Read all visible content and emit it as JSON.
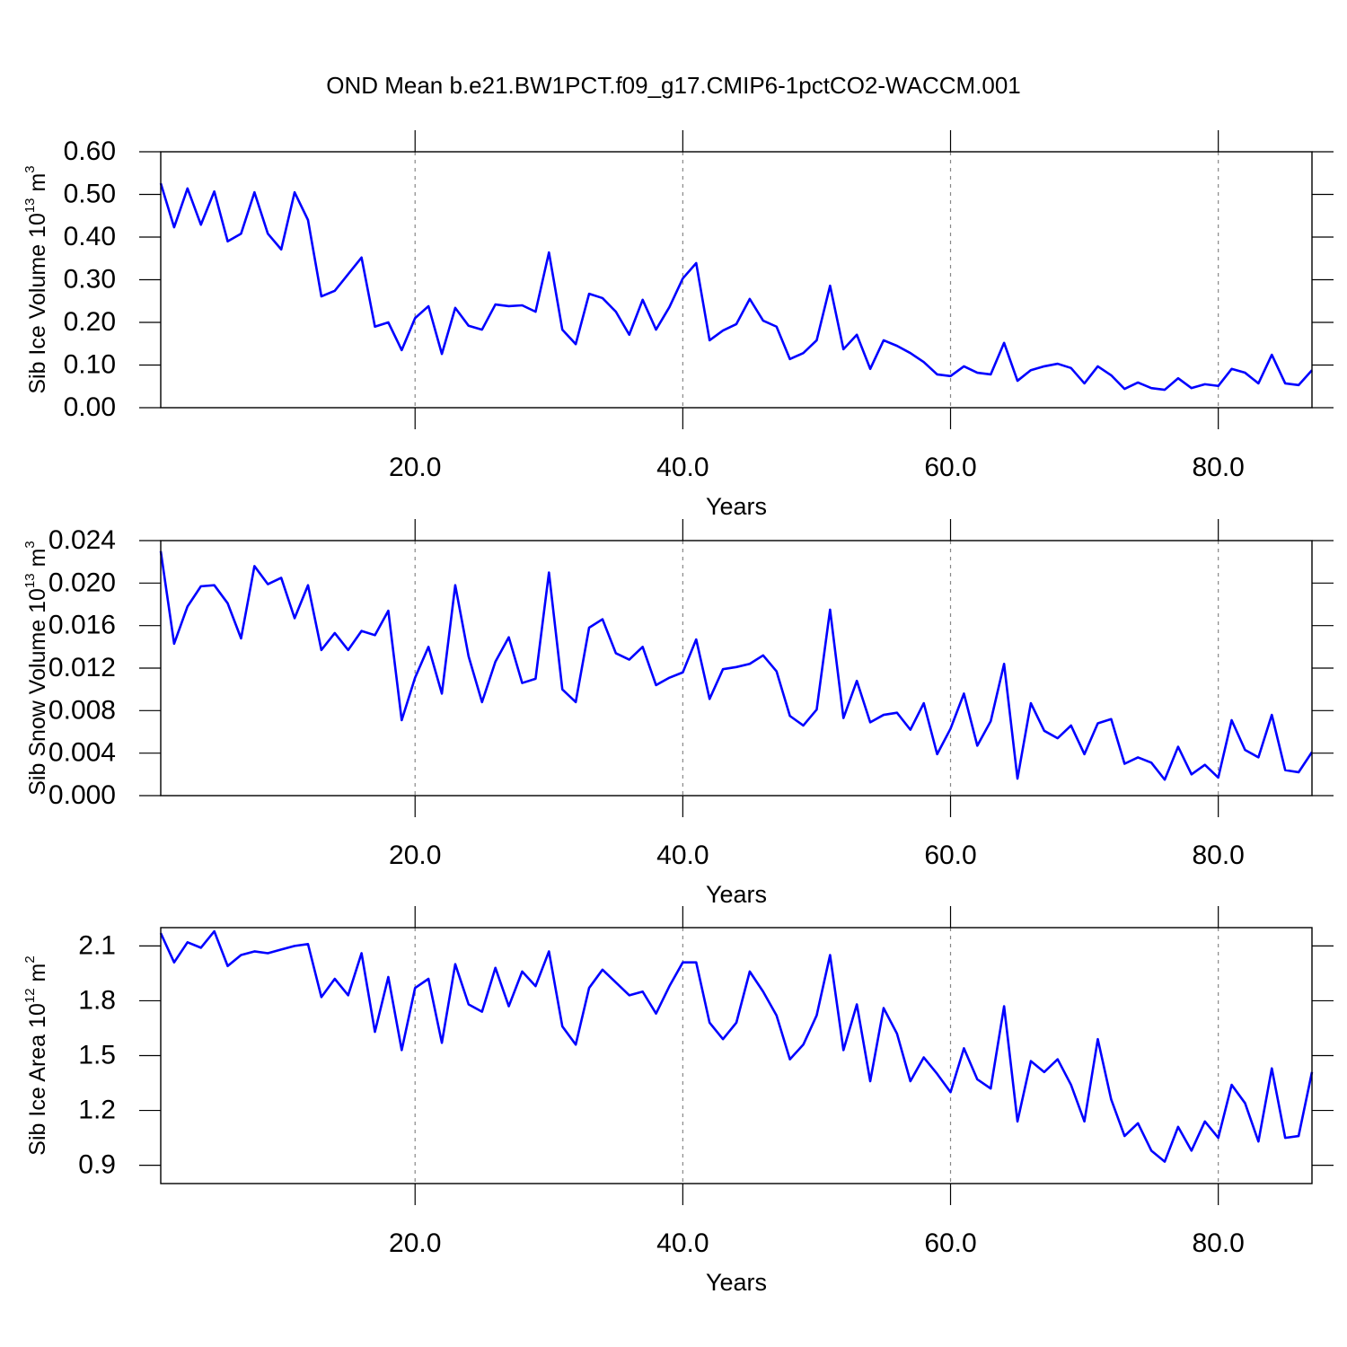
{
  "chart_data": [
    {
      "type": "line",
      "title": "OND Mean b.e21.BW1PCT.f09_g17.CMIP6-1pctCO2-WACCM.001",
      "xlabel": "Years",
      "ylabel_parts": [
        {
          "text": "Sib Ice Volume 10"
        },
        {
          "text": "13",
          "sup": true
        },
        {
          "text": " m"
        },
        {
          "text": "3",
          "sup": true
        }
      ],
      "x": [
        1,
        2,
        3,
        4,
        5,
        6,
        7,
        8,
        9,
        10,
        11,
        12,
        13,
        14,
        15,
        16,
        17,
        18,
        19,
        20,
        21,
        22,
        23,
        24,
        25,
        26,
        27,
        28,
        29,
        30,
        31,
        32,
        33,
        34,
        35,
        36,
        37,
        38,
        39,
        40,
        41,
        42,
        43,
        44,
        45,
        46,
        47,
        48,
        49,
        50,
        51,
        52,
        53,
        54,
        55,
        56,
        57,
        58,
        59,
        60,
        61,
        62,
        63,
        64,
        65,
        66,
        67,
        68,
        69,
        70,
        71,
        72,
        73,
        74,
        75,
        76,
        77,
        78,
        79,
        80,
        81,
        82,
        83,
        84,
        85,
        86,
        87
      ],
      "values": [
        0.526,
        0.423,
        0.514,
        0.429,
        0.507,
        0.39,
        0.408,
        0.505,
        0.408,
        0.371,
        0.505,
        0.44,
        0.261,
        0.274,
        0.313,
        0.352,
        0.19,
        0.2,
        0.135,
        0.21,
        0.238,
        0.126,
        0.234,
        0.192,
        0.183,
        0.242,
        0.238,
        0.24,
        0.225,
        0.364,
        0.183,
        0.149,
        0.267,
        0.257,
        0.225,
        0.171,
        0.253,
        0.183,
        0.236,
        0.303,
        0.339,
        0.158,
        0.181,
        0.196,
        0.255,
        0.204,
        0.19,
        0.114,
        0.128,
        0.158,
        0.286,
        0.137,
        0.171,
        0.091,
        0.158,
        0.145,
        0.128,
        0.107,
        0.078,
        0.074,
        0.097,
        0.082,
        0.078,
        0.152,
        0.063,
        0.088,
        0.097,
        0.103,
        0.093,
        0.057,
        0.097,
        0.076,
        0.044,
        0.059,
        0.046,
        0.042,
        0.069,
        0.046,
        0.055,
        0.051,
        0.091,
        0.082,
        0.057,
        0.124,
        0.057,
        0.053,
        0.088
      ],
      "color": "#0000ff",
      "xlim": [
        1,
        87
      ],
      "ylim": [
        0,
        0.6
      ],
      "xticks": [
        {
          "value": 20,
          "label": "20.0"
        },
        {
          "value": 40,
          "label": "40.0"
        },
        {
          "value": 60,
          "label": "60.0"
        },
        {
          "value": 80,
          "label": "80.0"
        }
      ],
      "yticks": [
        {
          "value": 0,
          "label": "0.00"
        },
        {
          "value": 0.1,
          "label": "0.10"
        },
        {
          "value": 0.2,
          "label": "0.20"
        },
        {
          "value": 0.3,
          "label": "0.30"
        },
        {
          "value": 0.4,
          "label": "0.40"
        },
        {
          "value": 0.5,
          "label": "0.50"
        },
        {
          "value": 0.6,
          "label": "0.60"
        }
      ],
      "grid": true
    },
    {
      "type": "line",
      "xlabel": "Years",
      "ylabel_parts": [
        {
          "text": "Sib Snow Volume 10"
        },
        {
          "text": "13",
          "sup": true
        },
        {
          "text": " m"
        },
        {
          "text": "3",
          "sup": true
        }
      ],
      "x": [
        1,
        2,
        3,
        4,
        5,
        6,
        7,
        8,
        9,
        10,
        11,
        12,
        13,
        14,
        15,
        16,
        17,
        18,
        19,
        20,
        21,
        22,
        23,
        24,
        25,
        26,
        27,
        28,
        29,
        30,
        31,
        32,
        33,
        34,
        35,
        36,
        37,
        38,
        39,
        40,
        41,
        42,
        43,
        44,
        45,
        46,
        47,
        48,
        49,
        50,
        51,
        52,
        53,
        54,
        55,
        56,
        57,
        58,
        59,
        60,
        61,
        62,
        63,
        64,
        65,
        66,
        67,
        68,
        69,
        70,
        71,
        72,
        73,
        74,
        75,
        76,
        77,
        78,
        79,
        80,
        81,
        82,
        83,
        84,
        85,
        86,
        87
      ],
      "values": [
        0.023,
        0.0143,
        0.0178,
        0.0197,
        0.0198,
        0.0181,
        0.0148,
        0.0216,
        0.0199,
        0.0205,
        0.0167,
        0.0198,
        0.0137,
        0.0153,
        0.0137,
        0.0155,
        0.0151,
        0.0174,
        0.0071,
        0.0111,
        0.014,
        0.0096,
        0.0198,
        0.0131,
        0.0088,
        0.0126,
        0.0149,
        0.0106,
        0.011,
        0.021,
        0.01,
        0.0088,
        0.0158,
        0.0166,
        0.0134,
        0.0128,
        0.014,
        0.0104,
        0.0111,
        0.0116,
        0.0147,
        0.0091,
        0.0119,
        0.0121,
        0.0124,
        0.0132,
        0.0117,
        0.0075,
        0.0066,
        0.0081,
        0.0175,
        0.0073,
        0.0108,
        0.0069,
        0.0076,
        0.0078,
        0.0062,
        0.0087,
        0.0039,
        0.0063,
        0.0096,
        0.0047,
        0.007,
        0.0124,
        0.0016,
        0.0087,
        0.0061,
        0.0054,
        0.0066,
        0.0039,
        0.0068,
        0.0072,
        0.003,
        0.0036,
        0.0031,
        0.0015,
        0.0046,
        0.002,
        0.0029,
        0.0017,
        0.0071,
        0.0043,
        0.0036,
        0.0076,
        0.0024,
        0.0022,
        0.0041
      ],
      "color": "#0000ff",
      "xlim": [
        1,
        87
      ],
      "ylim": [
        0,
        0.024
      ],
      "xticks": [
        {
          "value": 20,
          "label": "20.0"
        },
        {
          "value": 40,
          "label": "40.0"
        },
        {
          "value": 60,
          "label": "60.0"
        },
        {
          "value": 80,
          "label": "80.0"
        }
      ],
      "yticks": [
        {
          "value": 0,
          "label": "0.000"
        },
        {
          "value": 0.004,
          "label": "0.004"
        },
        {
          "value": 0.008,
          "label": "0.008"
        },
        {
          "value": 0.012,
          "label": "0.012"
        },
        {
          "value": 0.016,
          "label": "0.016"
        },
        {
          "value": 0.02,
          "label": "0.020"
        },
        {
          "value": 0.024,
          "label": "0.024"
        }
      ],
      "grid": true
    },
    {
      "type": "line",
      "xlabel": "Years",
      "ylabel_parts": [
        {
          "text": "Sib Ice Area 10"
        },
        {
          "text": "12",
          "sup": true
        },
        {
          "text": " m"
        },
        {
          "text": "2",
          "sup": true
        }
      ],
      "x": [
        1,
        2,
        3,
        4,
        5,
        6,
        7,
        8,
        9,
        10,
        11,
        12,
        13,
        14,
        15,
        16,
        17,
        18,
        19,
        20,
        21,
        22,
        23,
        24,
        25,
        26,
        27,
        28,
        29,
        30,
        31,
        32,
        33,
        34,
        35,
        36,
        37,
        38,
        39,
        40,
        41,
        42,
        43,
        44,
        45,
        46,
        47,
        48,
        49,
        50,
        51,
        52,
        53,
        54,
        55,
        56,
        57,
        58,
        59,
        60,
        61,
        62,
        63,
        64,
        65,
        66,
        67,
        68,
        69,
        70,
        71,
        72,
        73,
        74,
        75,
        76,
        77,
        78,
        79,
        80,
        81,
        82,
        83,
        84,
        85,
        86,
        87
      ],
      "values": [
        2.17,
        2.01,
        2.12,
        2.09,
        2.18,
        1.99,
        2.05,
        2.07,
        2.06,
        2.08,
        2.1,
        2.11,
        1.82,
        1.92,
        1.83,
        2.06,
        1.63,
        1.93,
        1.53,
        1.87,
        1.92,
        1.57,
        2.0,
        1.78,
        1.74,
        1.98,
        1.77,
        1.96,
        1.88,
        2.07,
        1.66,
        1.56,
        1.87,
        1.97,
        1.9,
        1.83,
        1.85,
        1.73,
        1.88,
        2.01,
        2.01,
        1.68,
        1.59,
        1.68,
        1.96,
        1.85,
        1.72,
        1.48,
        1.56,
        1.72,
        2.05,
        1.53,
        1.78,
        1.36,
        1.76,
        1.62,
        1.36,
        1.49,
        1.4,
        1.3,
        1.54,
        1.37,
        1.32,
        1.77,
        1.14,
        1.47,
        1.41,
        1.48,
        1.34,
        1.14,
        1.59,
        1.26,
        1.06,
        1.13,
        0.98,
        0.92,
        1.11,
        0.98,
        1.14,
        1.05,
        1.34,
        1.24,
        1.03,
        1.43,
        1.05,
        1.06,
        1.41
      ],
      "color": "#0000ff",
      "xlim": [
        1,
        87
      ],
      "ylim": [
        0.8,
        2.2
      ],
      "xticks": [
        {
          "value": 20,
          "label": "20.0"
        },
        {
          "value": 40,
          "label": "40.0"
        },
        {
          "value": 60,
          "label": "60.0"
        },
        {
          "value": 80,
          "label": "80.0"
        }
      ],
      "yticks": [
        0.9,
        1.2,
        1.5,
        1.8,
        2.1
      ],
      "grid": true
    }
  ]
}
